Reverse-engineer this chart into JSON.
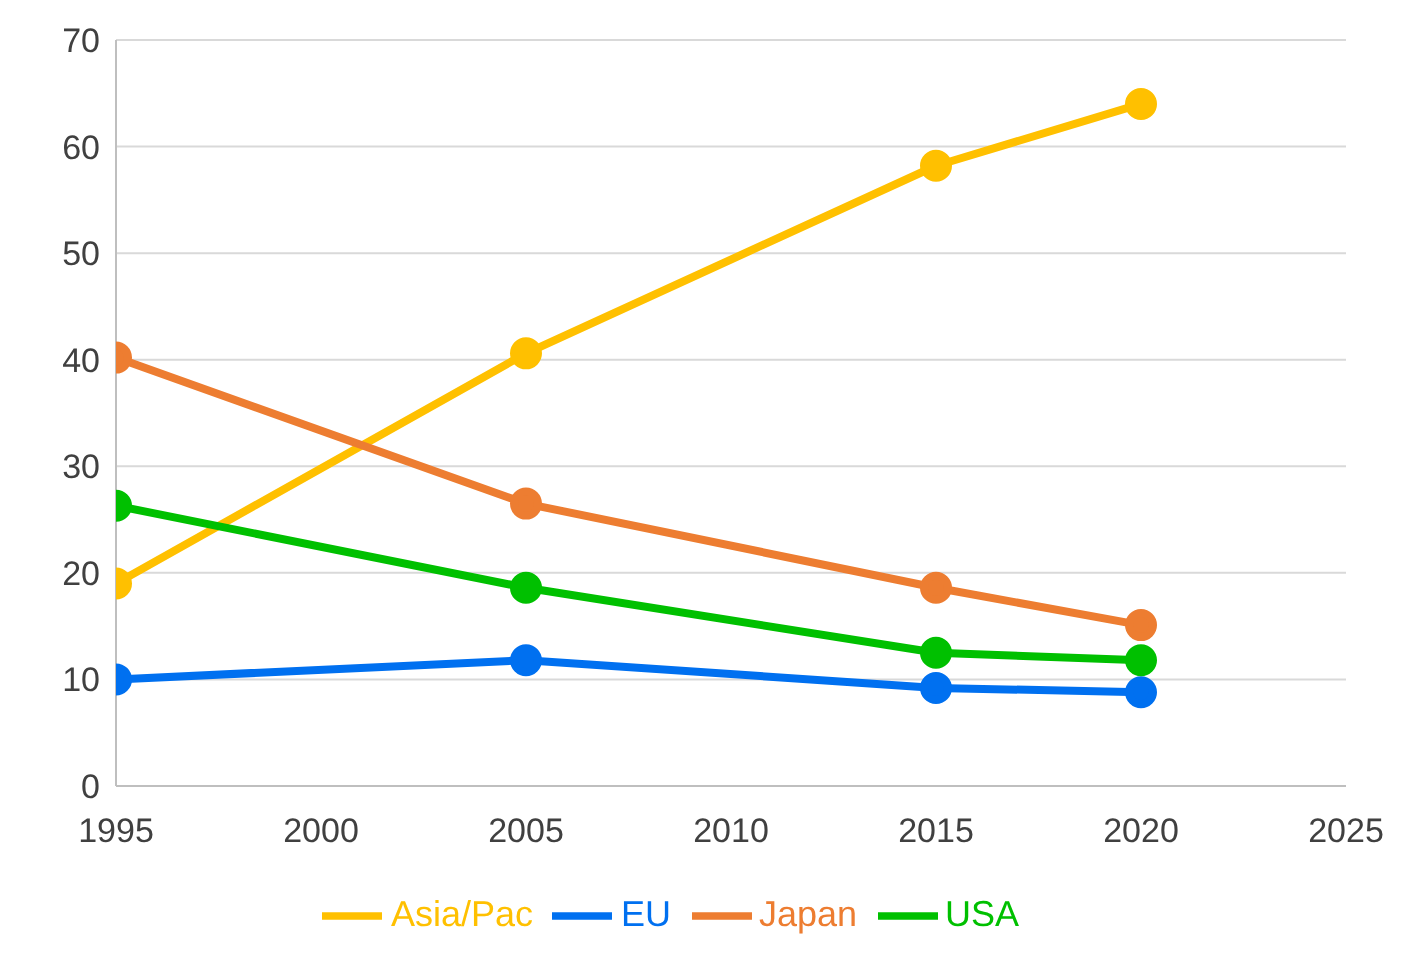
{
  "chart_data": {
    "type": "line",
    "x": [
      1995,
      2005,
      2015,
      2020
    ],
    "series": [
      {
        "name": "Asia/Pac",
        "color": "#ffc000",
        "values": [
          19,
          40.6,
          58.2,
          64
        ]
      },
      {
        "name": "Japan",
        "color": "#ed7d31",
        "values": [
          40.2,
          26.5,
          18.6,
          15.1
        ]
      },
      {
        "name": "EU",
        "color": "#0070f0",
        "values": [
          10,
          11.8,
          9.2,
          8.8
        ]
      },
      {
        "name": "USA",
        "color": "#00c000",
        "values": [
          26.3,
          18.6,
          12.5,
          11.8
        ]
      }
    ],
    "xlim": [
      1995,
      2025
    ],
    "xticks": [
      1995,
      2000,
      2005,
      2010,
      2015,
      2020,
      2025
    ],
    "ylim": [
      0,
      70
    ],
    "yticks": [
      0,
      10,
      20,
      30,
      40,
      50,
      60,
      70
    ],
    "grid": "y",
    "legend": "bottom",
    "marker": "circle",
    "line_style": "solid"
  }
}
